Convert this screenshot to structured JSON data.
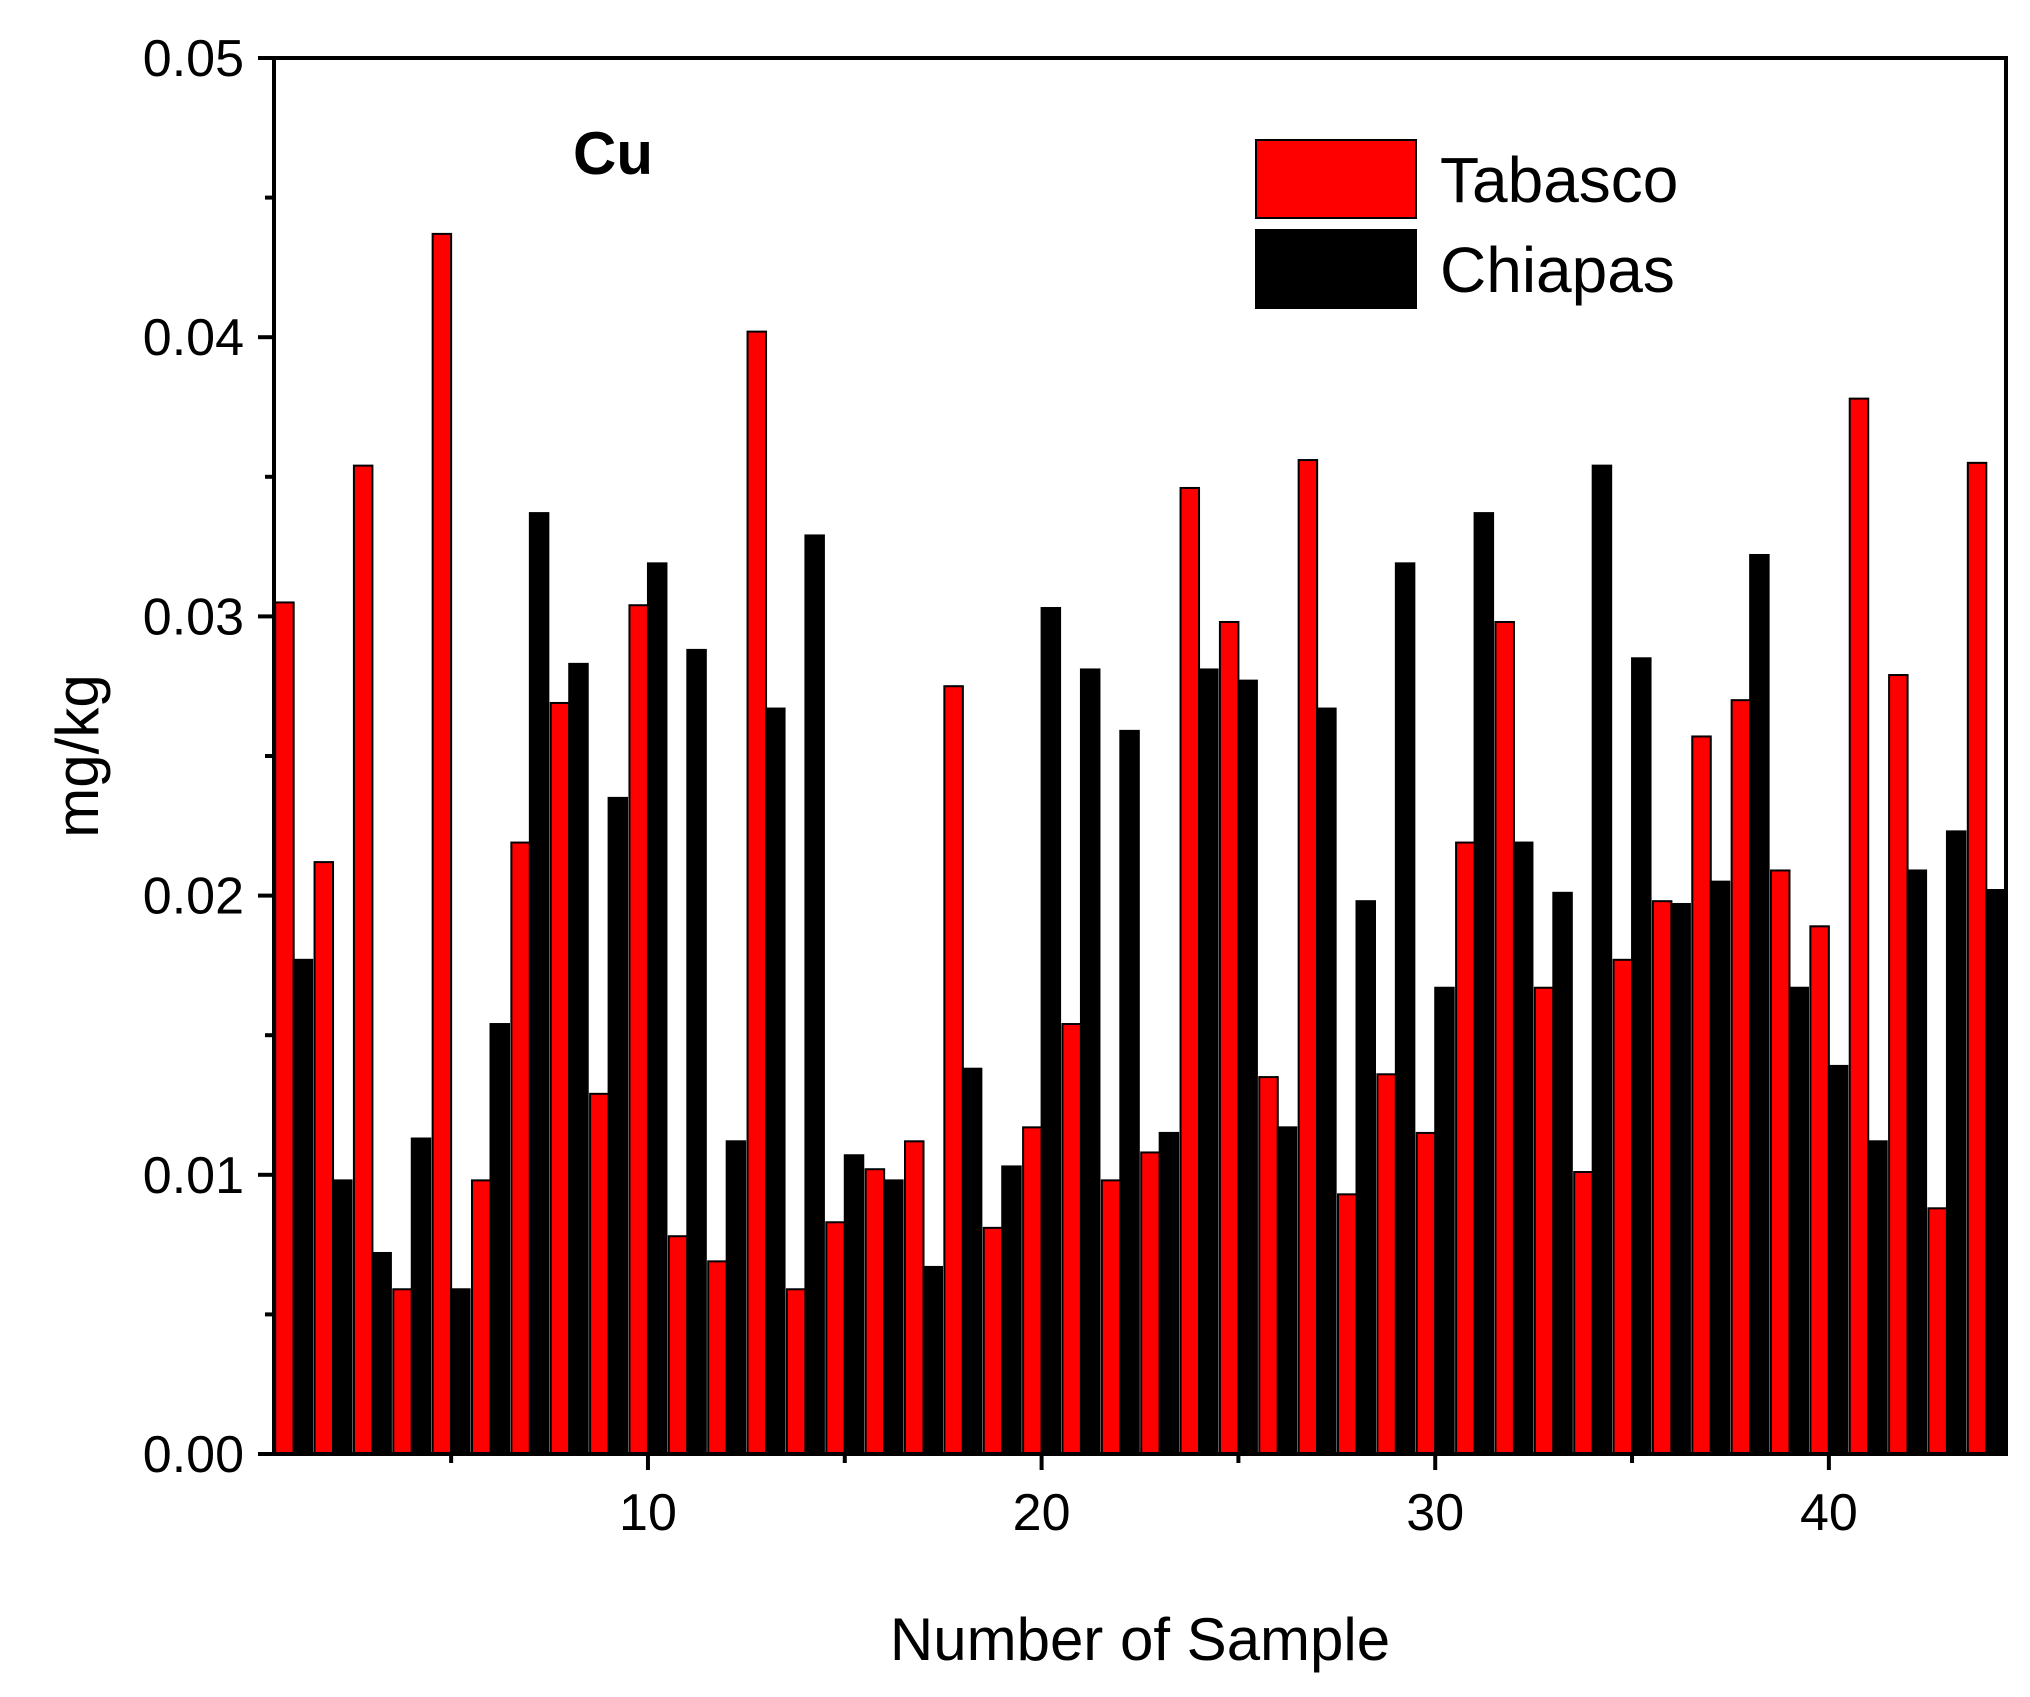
{
  "chart_data": {
    "type": "bar",
    "title": "",
    "annotation": "Cu",
    "xlabel": "Number of Sample",
    "ylabel": "mg/kg",
    "xlim": [
      0.5,
      44.5
    ],
    "ylim": [
      0,
      0.05
    ],
    "grid": false,
    "legend_position": "top-right",
    "x_ticks": [
      10,
      20,
      30,
      40
    ],
    "x_tick_labels": [
      "10",
      "20",
      "30",
      "40"
    ],
    "y_ticks": [
      0,
      0.01,
      0.02,
      0.03,
      0.04,
      0.05
    ],
    "y_tick_labels": [
      "0.00",
      "0.01",
      "0.02",
      "0.03",
      "0.04",
      "0.05"
    ],
    "categories": [
      1,
      2,
      3,
      4,
      5,
      6,
      7,
      8,
      9,
      10,
      11,
      12,
      13,
      14,
      15,
      16,
      17,
      18,
      19,
      20,
      21,
      22,
      23,
      24,
      25,
      26,
      27,
      28,
      29,
      30,
      31,
      32,
      33,
      34,
      35,
      36,
      37,
      38,
      39,
      40,
      41,
      42,
      43,
      44
    ],
    "series": [
      {
        "name": "Tabasco",
        "color": "#ff0000",
        "values": [
          0.0305,
          0.0212,
          0.0354,
          0.0059,
          0.0437,
          0.0098,
          0.0219,
          0.0269,
          0.0129,
          0.0304,
          0.0078,
          0.0069,
          0.0402,
          0.0059,
          0.0083,
          0.0102,
          0.0112,
          0.0275,
          0.0081,
          0.0117,
          0.0154,
          0.0098,
          0.0108,
          0.0346,
          0.0298,
          0.0135,
          0.0356,
          0.0093,
          0.0136,
          0.0115,
          0.0219,
          0.0298,
          0.0167,
          0.0101,
          0.0177,
          0.0198,
          0.0257,
          0.027,
          0.0209,
          0.0189,
          0.0378,
          0.0279,
          0.0088,
          0.0355
        ]
      },
      {
        "name": "Chiapas",
        "color": "#000000",
        "values": [
          0.0177,
          0.0098,
          0.0072,
          0.0113,
          0.0059,
          0.0154,
          0.0337,
          0.0283,
          0.0235,
          0.0319,
          0.0288,
          0.0112,
          0.0267,
          0.0329,
          0.0107,
          0.0098,
          0.0067,
          0.0138,
          0.0103,
          0.0303,
          0.0281,
          0.0259,
          0.0115,
          0.0281,
          0.0277,
          0.0117,
          0.0267,
          0.0198,
          0.0319,
          0.0167,
          0.0337,
          0.0219,
          0.0201,
          0.0354,
          0.0285,
          0.0197,
          0.0205,
          0.0322,
          0.0167,
          0.0139,
          0.0112,
          0.0209,
          0.0223,
          0.0202
        ]
      }
    ]
  }
}
